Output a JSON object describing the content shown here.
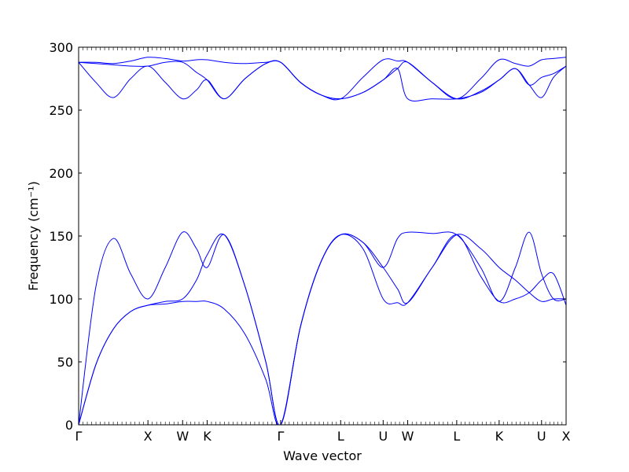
{
  "chart_data": {
    "type": "line",
    "title": "",
    "xlabel": "Wave vector",
    "ylabel": "Frequency (cm⁻¹)",
    "ylim": [
      0,
      300
    ],
    "yticks": [
      0,
      50,
      100,
      150,
      200,
      250,
      300
    ],
    "grid": false,
    "legend": "none",
    "line_color": "#0000ff",
    "high_symmetry_points": [
      {
        "label": "Γ",
        "x": 0
      },
      {
        "label": "X",
        "x": 1.0
      },
      {
        "label": "W",
        "x": 1.5
      },
      {
        "label": "K",
        "x": 1.854
      },
      {
        "label": "Γ",
        "x": 2.914
      },
      {
        "label": "L",
        "x": 3.78
      },
      {
        "label": "U",
        "x": 4.393
      },
      {
        "label": "W",
        "x": 4.747
      },
      {
        "label": "L",
        "x": 5.454
      },
      {
        "label": "K",
        "x": 6.066
      },
      {
        "label": "U",
        "x": 6.678
      },
      {
        "label": "X",
        "x": 7.032
      }
    ],
    "series": [
      {
        "x": [
          0,
          0.25,
          0.5,
          0.75,
          1.0,
          1.25,
          1.5,
          1.7,
          1.854,
          2.1,
          2.4,
          2.7,
          2.914,
          3.2,
          3.5,
          3.78,
          4.1,
          4.393,
          4.6,
          4.747,
          5.1,
          5.454,
          5.8,
          6.066,
          6.3,
          6.5,
          6.678,
          6.85,
          7.032
        ],
        "y": [
          0,
          48,
          76,
          90,
          95,
          96,
          98,
          98,
          98,
          92,
          72,
          36,
          0,
          78,
          130,
          151,
          140,
          100,
          97,
          97,
          125,
          151,
          118,
          98,
          100,
          105,
          115,
          120,
          95
        ]
      },
      {
        "x": [
          0,
          0.25,
          0.5,
          0.75,
          1.0,
          1.25,
          1.5,
          1.7,
          1.854,
          2.1,
          2.4,
          2.7,
          2.914,
          3.2,
          3.5,
          3.78,
          4.1,
          4.393,
          4.6,
          4.747,
          5.1,
          5.454,
          5.8,
          6.066,
          6.3,
          6.5,
          6.678,
          6.85,
          7.032
        ],
        "y": [
          0,
          48,
          76,
          90,
          95,
          98,
          100,
          115,
          135,
          151,
          110,
          50,
          0,
          78,
          130,
          151,
          145,
          125,
          108,
          97,
          125,
          151,
          140,
          125,
          115,
          105,
          98,
          100,
          100
        ]
      },
      {
        "x": [
          0,
          0.25,
          0.5,
          0.75,
          1.0,
          1.25,
          1.5,
          1.7,
          1.854,
          2.1,
          2.4,
          2.7,
          2.914,
          3.2,
          3.5,
          3.78,
          4.1,
          4.393,
          4.6,
          4.747,
          5.1,
          5.454,
          5.8,
          6.066,
          6.3,
          6.5,
          6.678,
          6.85,
          7.032
        ],
        "y": [
          0,
          110,
          148,
          120,
          100,
          125,
          153,
          140,
          125,
          151,
          110,
          50,
          0,
          78,
          130,
          151,
          145,
          125,
          148,
          153,
          152,
          151,
          125,
          98,
          125,
          153,
          120,
          100,
          100
        ]
      },
      {
        "x": [
          0,
          0.25,
          0.5,
          0.75,
          1.0,
          1.25,
          1.5,
          1.7,
          1.854,
          2.1,
          2.4,
          2.7,
          2.914,
          3.2,
          3.5,
          3.78,
          4.1,
          4.393,
          4.6,
          4.747,
          5.1,
          5.454,
          5.8,
          6.066,
          6.3,
          6.5,
          6.678,
          6.85,
          7.032
        ],
        "y": [
          288,
          272,
          260,
          275,
          285,
          272,
          259,
          266,
          274,
          259,
          275,
          287,
          288,
          272,
          262,
          259,
          264,
          274,
          283,
          259,
          259,
          259,
          264,
          274,
          283,
          270,
          260,
          276,
          285
        ]
      },
      {
        "x": [
          0,
          0.25,
          0.5,
          0.75,
          1.0,
          1.25,
          1.5,
          1.7,
          1.854,
          2.1,
          2.4,
          2.7,
          2.914,
          3.2,
          3.5,
          3.78,
          4.1,
          4.393,
          4.6,
          4.747,
          5.1,
          5.454,
          5.8,
          6.066,
          6.3,
          6.5,
          6.678,
          6.85,
          7.032
        ],
        "y": [
          288,
          287,
          286,
          285,
          285,
          288,
          288,
          280,
          274,
          259,
          275,
          287,
          288,
          272,
          262,
          259,
          264,
          274,
          283,
          288,
          272,
          259,
          265,
          274,
          283,
          270,
          276,
          279,
          285
        ]
      },
      {
        "x": [
          0,
          0.25,
          0.5,
          0.75,
          1.0,
          1.25,
          1.5,
          1.7,
          1.854,
          2.1,
          2.4,
          2.7,
          2.914,
          3.2,
          3.5,
          3.78,
          4.1,
          4.393,
          4.6,
          4.747,
          5.1,
          5.454,
          5.8,
          6.066,
          6.3,
          6.5,
          6.678,
          6.85,
          7.032
        ],
        "y": [
          288,
          288,
          287,
          289,
          292,
          291,
          289,
          290,
          290,
          288,
          287,
          288,
          288,
          272,
          262,
          259,
          276,
          290,
          289,
          288,
          272,
          259,
          275,
          290,
          287,
          285,
          290,
          291,
          292
        ]
      }
    ]
  }
}
